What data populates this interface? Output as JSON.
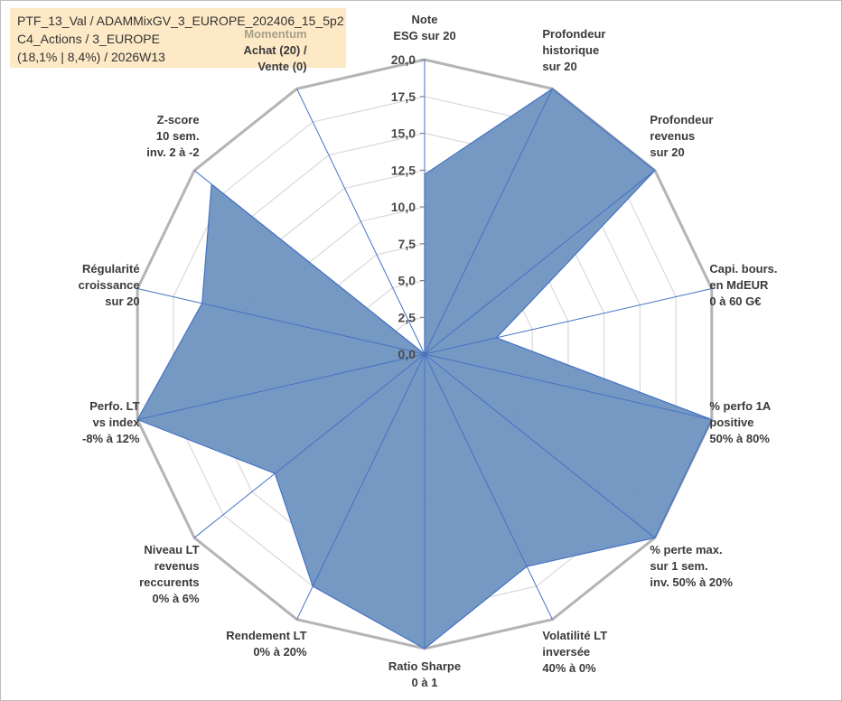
{
  "info": {
    "line1": "PTF_13_Val / ADAMMixGV_3_EUROPE_202406_15_5p2",
    "line2": "C4_Actions / 3_EUROPE",
    "line3": "(18,1% | 8,4%) / 2026W13"
  },
  "chart_data": {
    "type": "radar",
    "title": "",
    "rlim": [
      0,
      20
    ],
    "ticks": [
      "0,0",
      "2,5",
      "5,0",
      "7,5",
      "10,0",
      "12,5",
      "15,0",
      "17,5",
      "20,0"
    ],
    "grid": true,
    "fill_color": "#6f93c0",
    "line_color": "#4472c4",
    "grid_color": "#bfbfbf",
    "axes": [
      {
        "lines": [
          "Note",
          "ESG sur 20"
        ],
        "value": 12.2
      },
      {
        "lines": [
          "Profondeur",
          "historique",
          "sur 20"
        ],
        "value": 20
      },
      {
        "lines": [
          "Profondeur",
          "revenus",
          "sur 20"
        ],
        "value": 20
      },
      {
        "lines": [
          "Capi. bours.",
          "en MdEUR",
          "0 à 60 G€"
        ],
        "value": 5
      },
      {
        "lines": [
          "% perfo 1A",
          "positive",
          "50% à 80%"
        ],
        "value": 20
      },
      {
        "lines": [
          "% perte max.",
          "sur 1 sem.",
          "inv. 50% à 20%"
        ],
        "value": 20
      },
      {
        "lines": [
          "Volatilité LT",
          "inversée",
          "40% à 0%"
        ],
        "value": 16
      },
      {
        "lines": [
          "Ratio Sharpe",
          "0 à 1"
        ],
        "value": 20
      },
      {
        "lines": [
          "Rendement LT",
          "0% à 20%"
        ],
        "value": 17.5
      },
      {
        "lines": [
          "Niveau LT",
          "revenus",
          "reccurents",
          "0% à 6%"
        ],
        "value": 13
      },
      {
        "lines": [
          "Perfo. LT",
          "vs index",
          "-8% à 12%"
        ],
        "value": 20
      },
      {
        "lines": [
          "Régularité",
          "croissance",
          "sur 20"
        ],
        "value": 15.5
      },
      {
        "lines": [
          "Z-score",
          "10 sem.",
          "inv. 2 à -2"
        ],
        "value": 18.5
      },
      {
        "lines": [
          "Momentum",
          "Achat (20) /",
          "Vente (0)"
        ],
        "value": 0,
        "first_line_grey": true
      }
    ]
  }
}
